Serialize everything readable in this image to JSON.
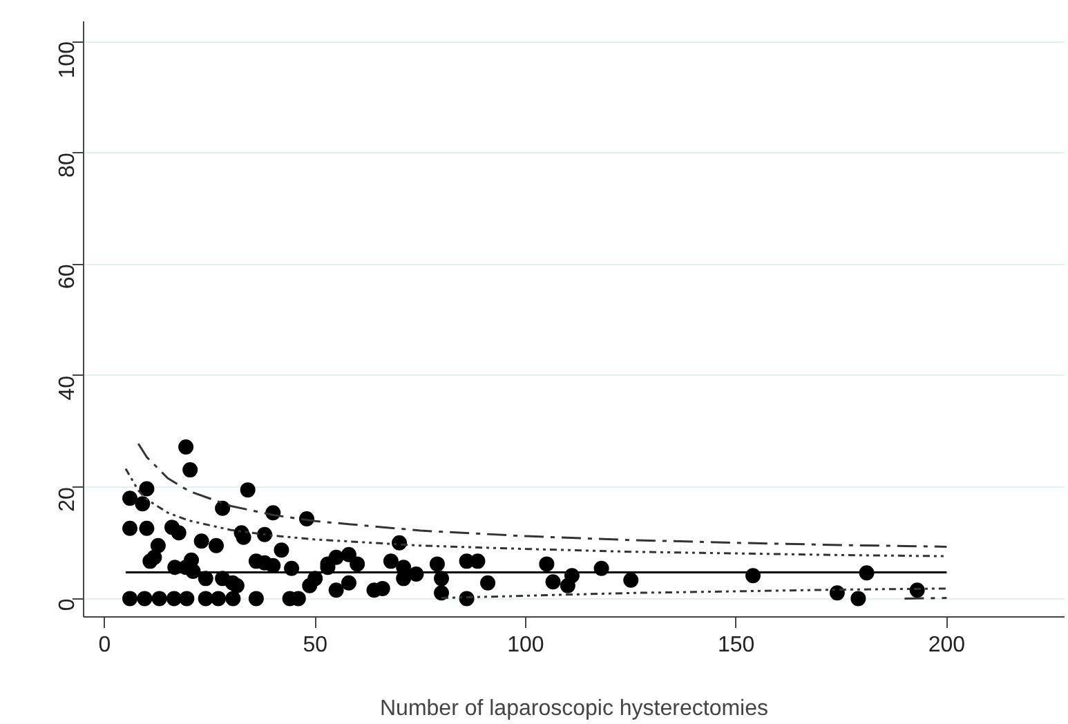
{
  "chart_data": {
    "type": "scatter",
    "xlabel": "Number of laparoscopic hysterectomies",
    "xlim": [
      -5,
      228
    ],
    "ylim": [
      -3.3,
      103.6
    ],
    "xticks": [
      0,
      50,
      100,
      150,
      200
    ],
    "yticks": [
      0,
      20,
      40,
      60,
      80,
      100
    ],
    "grid": "y",
    "series": [
      {
        "color": "#000000",
        "marker": "circle",
        "x": [
          19.3,
          20.3,
          10,
          34,
          6,
          9,
          28,
          40,
          48,
          6,
          10,
          16,
          17.6,
          23,
          26.5,
          32.5,
          33,
          38,
          42,
          12.7,
          11.8,
          10.8,
          16.7,
          20.6,
          21,
          19.3,
          24,
          28,
          30.4,
          31.4,
          36,
          38,
          40,
          44.4,
          53,
          50,
          48.7,
          6,
          9.5,
          13,
          16.5,
          19.5,
          24,
          27,
          30.5,
          36,
          44,
          46,
          70,
          55,
          58,
          60,
          53,
          55,
          58,
          64,
          66,
          68,
          71,
          71,
          74,
          79,
          80,
          80,
          86,
          88.6,
          91,
          86,
          105,
          106.5,
          110,
          111,
          118,
          125,
          154,
          174,
          179,
          181,
          193
        ],
        "values": [
          27.2,
          23.1,
          19.7,
          19.5,
          18,
          17,
          16.2,
          15.4,
          14.3,
          12.6,
          12.6,
          12.8,
          11.8,
          10.3,
          9.5,
          11.8,
          11,
          11.5,
          8.7,
          9.5,
          7.4,
          6.7,
          5.6,
          6.9,
          4.9,
          5.6,
          3.6,
          3.6,
          2.8,
          2.3,
          6.7,
          6.4,
          5.9,
          5.4,
          6.2,
          3.6,
          2.3,
          0,
          0,
          0,
          0,
          0,
          0,
          0,
          0,
          0,
          0,
          0,
          10,
          7.4,
          7.9,
          6.2,
          5.6,
          1.5,
          2.8,
          1.5,
          1.8,
          6.7,
          5.6,
          3.6,
          4.4,
          6.2,
          3.6,
          1,
          6.7,
          6.7,
          2.8,
          0,
          6.2,
          3,
          2.3,
          4.1,
          5.4,
          3.3,
          4.1,
          1,
          0,
          4.6,
          1.5
        ]
      },
      {
        "type": "line",
        "color": "#000000",
        "line_style": "solid",
        "x": [
          5,
          200
        ],
        "values": [
          4.7,
          4.7
        ]
      },
      {
        "type": "line",
        "color": "#333333",
        "line_style": "dashed",
        "x": [
          8,
          10,
          15,
          20,
          30,
          40,
          50,
          75,
          100,
          125,
          150,
          175,
          200
        ],
        "values": [
          27.8,
          25.4,
          21.6,
          19.3,
          16.6,
          15.0,
          13.9,
          12.2,
          11.2,
          10.5,
          10.0,
          9.6,
          9.3
        ]
      },
      {
        "type": "line",
        "color": "#333333",
        "line_style": "dotted",
        "x": [
          5,
          8,
          10,
          15,
          20,
          30,
          40,
          50,
          75,
          100,
          125,
          150,
          175,
          200
        ],
        "values": [
          23.3,
          19.4,
          17.8,
          15.4,
          14.0,
          12.3,
          11.3,
          10.6,
          9.5,
          8.9,
          8.4,
          8.1,
          7.8,
          7.6
        ]
      },
      {
        "type": "line",
        "color": "#333333",
        "line_style": "dotted",
        "x": [
          80,
          100,
          125,
          150,
          175,
          200
        ],
        "values": [
          0.1,
          0.5,
          1.0,
          1.3,
          1.6,
          1.8
        ]
      },
      {
        "type": "line",
        "color": "#333333",
        "line_style": "dashed",
        "x": [
          190,
          200
        ],
        "values": [
          0,
          0.1
        ]
      }
    ]
  }
}
